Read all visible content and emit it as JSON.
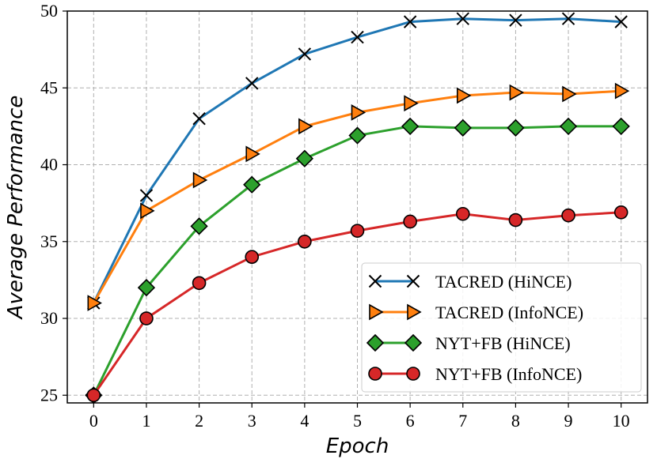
{
  "chart_data": {
    "type": "line",
    "xlabel": "Epoch",
    "ylabel": "Average Performance",
    "x": [
      0,
      1,
      2,
      3,
      4,
      5,
      6,
      7,
      8,
      9,
      10
    ],
    "xlim": [
      -0.5,
      10.5
    ],
    "ylim": [
      24.5,
      50
    ],
    "yticks": [
      25,
      30,
      35,
      40,
      45,
      50
    ],
    "grid": true,
    "legend_position": "bottom-right",
    "series": [
      {
        "name": "TACRED (HiNCE)",
        "marker": "x",
        "color": "#1f77b4",
        "values": [
          31.0,
          38.0,
          43.0,
          45.3,
          47.2,
          48.3,
          49.3,
          49.5,
          49.4,
          49.5,
          49.3
        ]
      },
      {
        "name": "TACRED (InfoNCE)",
        "marker": "triangle-right",
        "color": "#ff7f0e",
        "values": [
          31.0,
          37.0,
          39.0,
          40.7,
          42.5,
          43.4,
          44.0,
          44.5,
          44.7,
          44.6,
          44.8
        ]
      },
      {
        "name": "NYT+FB (HiNCE)",
        "marker": "diamond",
        "color": "#2ca02c",
        "values": [
          25.0,
          32.0,
          36.0,
          38.7,
          40.4,
          41.9,
          42.5,
          42.4,
          42.4,
          42.5,
          42.5
        ]
      },
      {
        "name": "NYT+FB (InfoNCE)",
        "marker": "circle",
        "color": "#d62728",
        "values": [
          25.0,
          30.0,
          32.3,
          34.0,
          35.0,
          35.7,
          36.3,
          36.8,
          36.4,
          36.7,
          36.9
        ]
      }
    ]
  }
}
